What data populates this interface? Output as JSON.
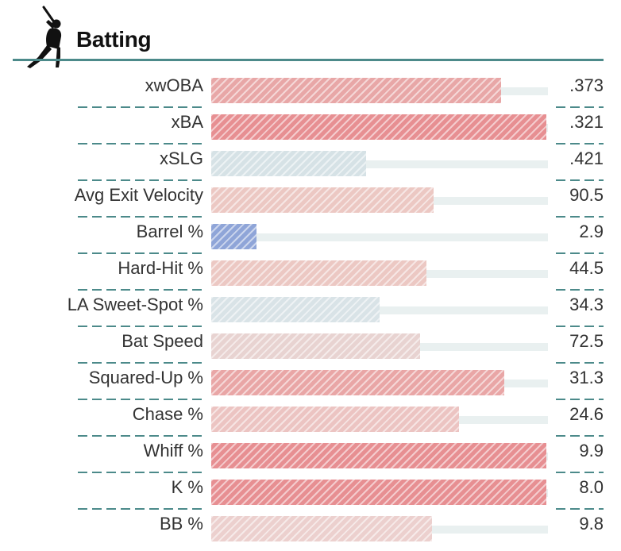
{
  "section": {
    "title": "Batting",
    "icon": "batter-silhouette-icon"
  },
  "colors": {
    "rule": "#4c8a8a",
    "track": "#e9f0f0"
  },
  "metrics": [
    {
      "label": "xwOBA",
      "value": ".373",
      "fill": 0.86,
      "color": "#e8a7a7"
    },
    {
      "label": "xBA",
      "value": ".321",
      "fill": 0.995,
      "color": "#e78f92"
    },
    {
      "label": "xSLG",
      "value": ".421",
      "fill": 0.46,
      "color": "#d6e2e6"
    },
    {
      "label": "Avg Exit Velocity",
      "value": "90.5",
      "fill": 0.66,
      "color": "#ecc8c3"
    },
    {
      "label": "Barrel %",
      "value": "2.9",
      "fill": 0.135,
      "color": "#8fa5d8"
    },
    {
      "label": "Hard-Hit %",
      "value": "44.5",
      "fill": 0.64,
      "color": "#ecc8c3"
    },
    {
      "label": "LA Sweet-Spot %",
      "value": "34.3",
      "fill": 0.5,
      "color": "#d9e3e7"
    },
    {
      "label": "Bat Speed",
      "value": "72.5",
      "fill": 0.62,
      "color": "#e8d3d1"
    },
    {
      "label": "Squared-Up %",
      "value": "31.3",
      "fill": 0.87,
      "color": "#e9a6a6"
    },
    {
      "label": "Chase %",
      "value": "24.6",
      "fill": 0.735,
      "color": "#ecc4c2"
    },
    {
      "label": "Whiff %",
      "value": "9.9",
      "fill": 0.995,
      "color": "#e78f92"
    },
    {
      "label": "K %",
      "value": "8.0",
      "fill": 0.995,
      "color": "#e78f92"
    },
    {
      "label": "BB %",
      "value": "9.8",
      "fill": 0.655,
      "color": "#ecd0ce"
    }
  ]
}
